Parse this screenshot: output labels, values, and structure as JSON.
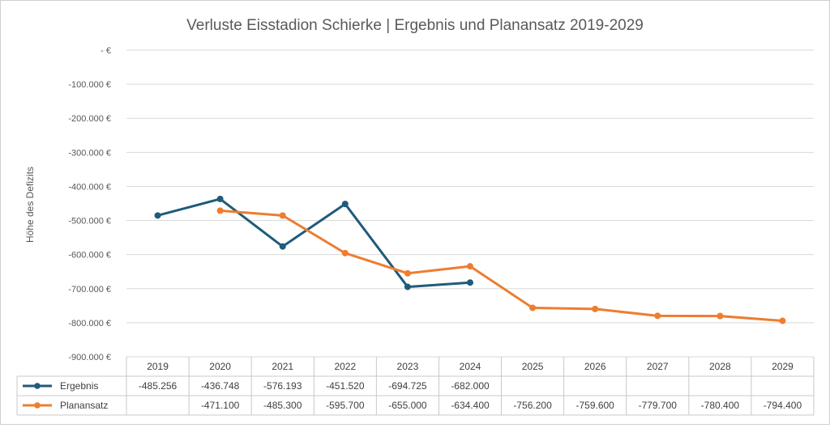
{
  "chart_data": {
    "type": "line",
    "title": "Verluste Eisstadion Schierke | Ergebnis und Planansatz 2019-2029",
    "xlabel": "",
    "ylabel": "Höhe des Defizits",
    "ylim": [
      -900000,
      0
    ],
    "y_ticks": [
      0,
      -100000,
      -200000,
      -300000,
      -400000,
      -500000,
      -600000,
      -700000,
      -800000,
      -900000
    ],
    "y_tick_labels": [
      "- €",
      "-100.000 €",
      "-200.000 €",
      "-300.000 €",
      "-400.000 €",
      "-500.000 €",
      "-600.000 €",
      "-700.000 €",
      "-800.000 €",
      "-900.000 €"
    ],
    "grid": true,
    "legend": "data-table-left",
    "categories": [
      "2019",
      "2020",
      "2021",
      "2022",
      "2023",
      "2024",
      "2025",
      "2026",
      "2027",
      "2028",
      "2029"
    ],
    "series": [
      {
        "name": "Ergebnis",
        "color": "#1f5b7a",
        "values": [
          -485256,
          -436748,
          -576193,
          -451520,
          -694725,
          -682000,
          null,
          null,
          null,
          null,
          null
        ],
        "labels": [
          "-485.256",
          "-436.748",
          "-576.193",
          "-451.520",
          "-694.725",
          "-682.000",
          "",
          "",
          "",
          "",
          ""
        ]
      },
      {
        "name": "Planansatz",
        "color": "#ed7d31",
        "values": [
          null,
          -471100,
          -485300,
          -595700,
          -655000,
          -634400,
          -756200,
          -759600,
          -779700,
          -780400,
          -794400
        ],
        "labels": [
          "",
          "-471.100",
          "-485.300",
          "-595.700",
          "-655.000",
          "-634.400",
          "-756.200",
          "-759.600",
          "-779.700",
          "-780.400",
          "-794.400"
        ]
      }
    ]
  }
}
